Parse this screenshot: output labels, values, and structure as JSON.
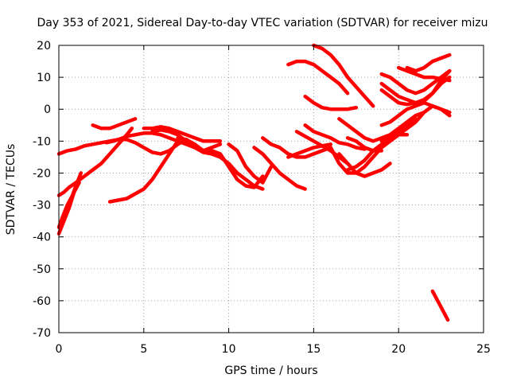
{
  "chart_data": {
    "type": "line",
    "title": "Day 353 of 2021, Sidereal Day-to-day VTEC variation (SDTVAR) for receiver mizu",
    "xlabel": "GPS time / hours",
    "ylabel": "SDTVAR / TECUs",
    "xlim": [
      0,
      25
    ],
    "ylim": [
      -70,
      20
    ],
    "xticks": [
      0,
      5,
      10,
      15,
      20,
      25
    ],
    "yticks": [
      -70,
      -60,
      -50,
      -40,
      -30,
      -20,
      -10,
      0,
      10,
      20
    ],
    "xtick_labels": [
      "0",
      "5",
      "10",
      "15",
      "20",
      "25"
    ],
    "ytick_labels": [
      "-70",
      "-60",
      "-50",
      "-40",
      "-30",
      "-20",
      "-10",
      "0",
      "10",
      "20"
    ],
    "grid": true,
    "legend": "none",
    "series_color": "#ff0000",
    "series": [
      {
        "name": "s1",
        "x": [
          0,
          0.5,
          1,
          1.5,
          2,
          2.5,
          3,
          3.5,
          4,
          4.5,
          5,
          5.5,
          6,
          6.5,
          7,
          7.5,
          8,
          8.5,
          9,
          9.5
        ],
        "y": [
          -14,
          -13,
          -12.5,
          -11.5,
          -11,
          -10.5,
          -10,
          -9.5,
          -8.5,
          -8,
          -7.5,
          -7.5,
          -8,
          -9,
          -10,
          -11,
          -12,
          -13,
          -12,
          -11
        ]
      },
      {
        "name": "s2",
        "x": [
          0,
          0.3,
          0.6,
          1,
          1.5,
          2,
          2.5,
          3,
          3.5,
          4,
          4.3
        ],
        "y": [
          -27,
          -26,
          -24.5,
          -23,
          -21,
          -19,
          -17,
          -14,
          -11,
          -8,
          -6
        ]
      },
      {
        "name": "s3",
        "x": [
          0,
          0.2,
          0.5,
          0.8,
          1,
          1.3
        ],
        "y": [
          -37,
          -34,
          -30,
          -27,
          -24,
          -20
        ]
      },
      {
        "name": "s4",
        "x": [
          0,
          0.3,
          0.6,
          0.9,
          1.2
        ],
        "y": [
          -39,
          -35,
          -31,
          -26,
          -23
        ]
      },
      {
        "name": "s5",
        "x": [
          2,
          2.5,
          3,
          3.5,
          4,
          4.5
        ],
        "y": [
          -5,
          -6,
          -6,
          -5,
          -4,
          -3
        ]
      },
      {
        "name": "s6",
        "x": [
          2.8,
          3.2,
          3.5,
          4,
          4.5,
          5,
          5.5,
          6,
          6.5,
          7,
          7.5
        ],
        "y": [
          -10.5,
          -10,
          -9.5,
          -9.5,
          -10.5,
          -12,
          -13.5,
          -14,
          -13,
          -11,
          -9.5
        ]
      },
      {
        "name": "s7",
        "x": [
          3,
          3.5,
          4,
          4.5,
          5,
          5.5,
          6,
          6.5,
          7
        ],
        "y": [
          -29,
          -28.5,
          -28,
          -26.5,
          -25,
          -22,
          -18,
          -14,
          -10
        ]
      },
      {
        "name": "s8",
        "x": [
          5,
          5.5,
          6,
          6.5,
          7,
          7.5,
          8,
          8.5,
          9,
          9.5
        ],
        "y": [
          -6,
          -6,
          -5.5,
          -6,
          -7,
          -8,
          -9,
          -10,
          -10,
          -10
        ]
      },
      {
        "name": "s9",
        "x": [
          5.5,
          6,
          6.5,
          7,
          7.5,
          8,
          8.5,
          9
        ],
        "y": [
          -7,
          -6.5,
          -7,
          -8,
          -10,
          -12,
          -13.5,
          -14
        ]
      },
      {
        "name": "s10",
        "x": [
          7,
          7.5,
          8,
          8.5,
          9,
          9.5,
          10,
          10.5,
          11,
          11.5,
          12
        ],
        "y": [
          -9,
          -9.5,
          -11,
          -13,
          -14,
          -15,
          -17,
          -20,
          -22,
          -24,
          -25
        ]
      },
      {
        "name": "s11",
        "x": [
          8.5,
          9,
          9.5,
          10,
          10.5,
          11,
          11.5,
          12
        ],
        "y": [
          -13,
          -13,
          -14,
          -18,
          -22,
          -24,
          -24.5,
          -21
        ]
      },
      {
        "name": "s12",
        "x": [
          10,
          10.5,
          11,
          11.5,
          12,
          12.5
        ],
        "y": [
          -11,
          -13,
          -18,
          -21,
          -23,
          -18
        ]
      },
      {
        "name": "s13",
        "x": [
          11.5,
          12,
          12.5,
          13,
          13.5,
          14,
          14.5
        ],
        "y": [
          -12,
          -14,
          -17,
          -20,
          -22,
          -24,
          -25
        ]
      },
      {
        "name": "s14",
        "x": [
          12,
          12.5,
          13,
          13.5,
          14,
          14.5,
          15,
          15.5,
          16
        ],
        "y": [
          -9,
          -11,
          -12,
          -14,
          -15,
          -15,
          -14,
          -13,
          -12
        ]
      },
      {
        "name": "s15",
        "x": [
          13.5,
          14,
          14.5,
          15,
          15.5,
          16
        ],
        "y": [
          -15,
          -14,
          -13,
          -12,
          -11.5,
          -11
        ]
      },
      {
        "name": "s16",
        "x": [
          14,
          14.5,
          15,
          15.5,
          16,
          16.5,
          17
        ],
        "y": [
          -7,
          -8.5,
          -10,
          -11.5,
          -13,
          -15,
          -17
        ]
      },
      {
        "name": "s17",
        "x": [
          14.5,
          15,
          15.5,
          16,
          16.5,
          17,
          17.5,
          18
        ],
        "y": [
          -5,
          -7,
          -8,
          -9,
          -10.5,
          -11,
          -12,
          -12.5
        ]
      },
      {
        "name": "s18",
        "x": [
          13.5,
          14,
          14.5,
          15,
          15.5,
          16,
          16.5,
          17
        ],
        "y": [
          14,
          15,
          15,
          14,
          12,
          10,
          8,
          5
        ]
      },
      {
        "name": "s19",
        "x": [
          14.5,
          15,
          15.5,
          16,
          16.5,
          17,
          17.5
        ],
        "y": [
          4,
          2,
          0.5,
          0,
          0,
          0,
          0.5
        ]
      },
      {
        "name": "s20",
        "x": [
          15,
          15.5,
          16,
          16.5,
          17,
          17.5,
          18,
          18.5
        ],
        "y": [
          20,
          19,
          17,
          14,
          10,
          7,
          4,
          1
        ]
      },
      {
        "name": "s21",
        "x": [
          16,
          16.5,
          17,
          17.5,
          18,
          18.5,
          19,
          19.5,
          20,
          20.5
        ],
        "y": [
          -12,
          -17,
          -20,
          -20,
          -18,
          -15,
          -12,
          -10,
          -8,
          -8
        ]
      },
      {
        "name": "s22",
        "x": [
          16.5,
          17,
          17.5,
          18,
          18.5,
          19,
          19.5
        ],
        "y": [
          -14,
          -17,
          -20,
          -21,
          -20,
          -19,
          -17
        ]
      },
      {
        "name": "s23",
        "x": [
          17,
          17.5,
          18,
          18.5,
          19,
          19.5,
          20,
          20.5,
          21
        ],
        "y": [
          -19,
          -18,
          -16,
          -13,
          -11,
          -9,
          -7,
          -5,
          -3
        ]
      },
      {
        "name": "s24",
        "x": [
          16.5,
          17,
          17.5,
          18,
          18.5,
          19,
          19.5,
          20,
          20.5,
          21,
          21.5
        ],
        "y": [
          -3,
          -5,
          -7,
          -9,
          -10,
          -9,
          -8,
          -6,
          -4,
          -2,
          -1
        ]
      },
      {
        "name": "s25",
        "x": [
          17,
          17.5,
          18,
          18.5,
          19
        ],
        "y": [
          -9,
          -10,
          -12,
          -13,
          -13
        ]
      },
      {
        "name": "s26",
        "x": [
          19,
          19.5,
          20,
          20.5,
          21,
          21.5,
          22,
          22.5,
          23
        ],
        "y": [
          11,
          10,
          8,
          6,
          5,
          6,
          8,
          10,
          12
        ]
      },
      {
        "name": "s27",
        "x": [
          19,
          19.5,
          20,
          20.5,
          21,
          21.5,
          22,
          22.5,
          23
        ],
        "y": [
          8,
          6,
          4,
          3,
          2,
          2.5,
          5,
          9,
          12
        ]
      },
      {
        "name": "s28",
        "x": [
          19,
          19.5,
          20,
          20.5,
          21,
          21.5,
          22,
          22.5,
          23
        ],
        "y": [
          6,
          4,
          2,
          1.5,
          2,
          3,
          5,
          8,
          10
        ]
      },
      {
        "name": "s29",
        "x": [
          19,
          19.5,
          20,
          20.5,
          21,
          21.5,
          22,
          22.5,
          23
        ],
        "y": [
          -5,
          -4,
          -2,
          0,
          1,
          2,
          1,
          0,
          -1
        ]
      },
      {
        "name": "s30",
        "x": [
          19,
          19.5,
          20,
          20.5,
          21,
          21.5,
          22,
          22.5,
          23
        ],
        "y": [
          -10,
          -9,
          -8,
          -6,
          -4,
          -1,
          1,
          0,
          -2
        ]
      },
      {
        "name": "s31",
        "x": [
          20,
          20.5,
          21,
          21.5,
          22,
          22.5,
          23
        ],
        "y": [
          13,
          12,
          11,
          10,
          10,
          9.5,
          9
        ]
      },
      {
        "name": "s32",
        "x": [
          20.5,
          21,
          21.5,
          22,
          22.5,
          23
        ],
        "y": [
          13,
          12,
          13,
          15,
          16,
          17
        ]
      },
      {
        "name": "s33",
        "x": [
          22,
          22.3,
          22.6,
          22.9
        ],
        "y": [
          -57,
          -60,
          -63,
          -66
        ]
      }
    ]
  }
}
